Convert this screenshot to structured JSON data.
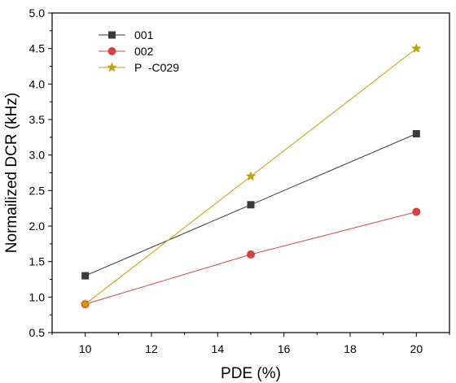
{
  "chart_data": {
    "type": "line",
    "title": "",
    "xlabel": "PDE (%)",
    "ylabel": "Normailized DCR (kHz)",
    "xlim": [
      9,
      21
    ],
    "ylim": [
      0.5,
      5.0
    ],
    "xticks": [
      10,
      12,
      14,
      16,
      18,
      20
    ],
    "xtick_labels": [
      "10",
      "12",
      "14",
      "16",
      "18",
      "20"
    ],
    "yticks": [
      0.5,
      1.0,
      1.5,
      2.0,
      2.5,
      3.0,
      3.5,
      4.0,
      4.5,
      5.0
    ],
    "ytick_labels": [
      "0.5",
      "1.0",
      "1.5",
      "2.0",
      "2.5",
      "3.0",
      "3.5",
      "4.0",
      "4.5",
      "5.0"
    ],
    "grid": false,
    "legend_position": "top-left",
    "series": [
      {
        "name": "001",
        "color": "#3a3a3a",
        "marker": "square",
        "x": [
          10,
          15,
          20
        ],
        "y": [
          1.3,
          2.3,
          3.3
        ]
      },
      {
        "name": "002",
        "color": "#d94040",
        "marker": "circle",
        "x": [
          10,
          15,
          20
        ],
        "y": [
          0.9,
          1.6,
          2.2
        ]
      },
      {
        "name": "P  -C029",
        "color": "#c8a000",
        "marker": "star",
        "x": [
          10,
          15,
          20
        ],
        "y": [
          0.9,
          2.7,
          4.5
        ]
      }
    ]
  }
}
